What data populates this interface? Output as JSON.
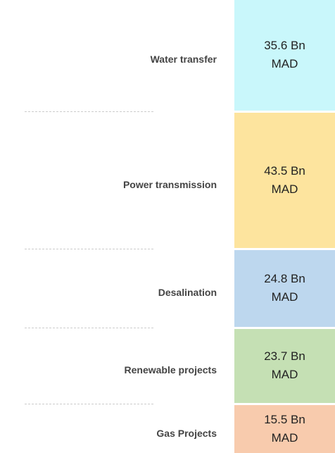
{
  "chart_data": {
    "type": "stacked-column",
    "categories": [
      "Water transfer",
      "Power transmission",
      "Desalination",
      "Renewable projects",
      "Gas Projects"
    ],
    "values": [
      35.6,
      43.5,
      24.8,
      23.7,
      15.5
    ],
    "value_labels": [
      "35.6 Bn MAD",
      "43.5 Bn MAD",
      "24.8 Bn MAD",
      "23.7 Bn MAD",
      "15.5 Bn MAD"
    ],
    "colors": [
      "#c9f7fb",
      "#fde49e",
      "#bdd7ee",
      "#c5e0b4",
      "#f8cbad"
    ]
  }
}
